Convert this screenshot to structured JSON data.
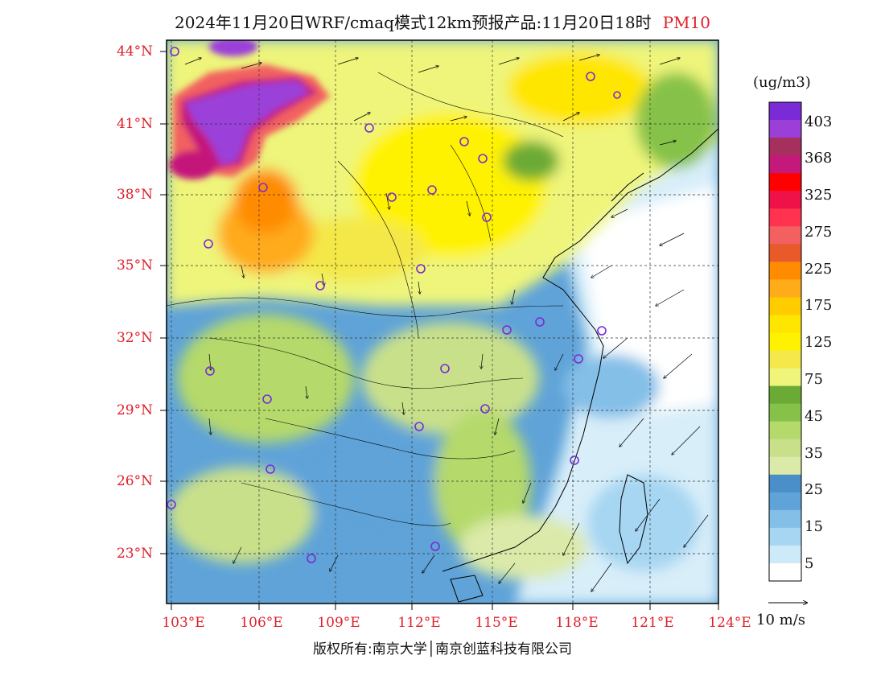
{
  "title": {
    "main": "2024年11月20日WRF/cmaq模式12km预报产品:11月20日18时",
    "pollutant": "PM10"
  },
  "lat_labels": [
    "44°N",
    "41°N",
    "38°N",
    "35°N",
    "32°N",
    "29°N",
    "26°N",
    "23°N"
  ],
  "lon_labels": [
    "103°E",
    "106°E",
    "109°E",
    "112°E",
    "115°E",
    "118°E",
    "121°E",
    "124°E"
  ],
  "colorbar": {
    "units": "(ug/m3)",
    "labels": [
      "403",
      "368",
      "325",
      "275",
      "225",
      "175",
      "125",
      "75",
      "45",
      "35",
      "25",
      "15",
      "5"
    ],
    "colors": [
      "#7b2bd6",
      "#9b3fd8",
      "#a5305e",
      "#c4187a",
      "#ff0000",
      "#ee1248",
      "#ff3350",
      "#f26060",
      "#e85a2a",
      "#ff8c00",
      "#ffab1a",
      "#ffcc00",
      "#ffe600",
      "#fff200",
      "#f4e84a",
      "#eef57a",
      "#6aaa35",
      "#86c24a",
      "#b5d96a",
      "#c9e08a",
      "#dbeaa8",
      "#4a8fc8",
      "#5fa3d8",
      "#84bfe8",
      "#a6d6f2",
      "#cdeaf8",
      "#ffffff"
    ]
  },
  "wind_reference": "10 m/s",
  "copyright": "版权所有:南京大学│南京创蓝科技有限公司"
}
